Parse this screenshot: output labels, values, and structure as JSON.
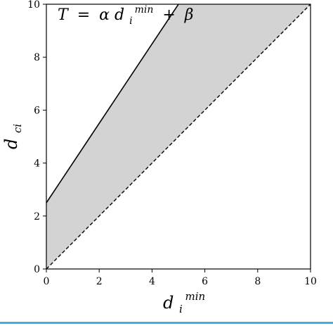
{
  "chart_data": {
    "type": "area",
    "xlim": [
      0,
      10
    ],
    "ylim": [
      0,
      10
    ],
    "x_ticks": [
      0,
      2,
      4,
      6,
      8,
      10
    ],
    "y_ticks": [
      0,
      2,
      4,
      6,
      8,
      10
    ],
    "xlabel": {
      "base": "d",
      "sub": "i",
      "sup": "min"
    },
    "ylabel": {
      "base": "d",
      "sub": "ci"
    },
    "upper_line": {
      "x": [
        0,
        5
      ],
      "y": [
        2.5,
        10
      ],
      "style": "solid",
      "color": "#000000"
    },
    "lower_line": {
      "x": [
        0,
        10
      ],
      "y": [
        0,
        10
      ],
      "style": "dashed",
      "color": "#000000"
    },
    "shaded_region": {
      "color": "#d3d3d3",
      "bounded_by": [
        "upper_line",
        "lower_line"
      ]
    },
    "annotation": {
      "lhs": "T",
      "eq": "=",
      "coef": "α",
      "var": "d",
      "sub": "i",
      "sup": "min",
      "plus": "+",
      "const": "β"
    },
    "grid": false,
    "legend": "none"
  }
}
